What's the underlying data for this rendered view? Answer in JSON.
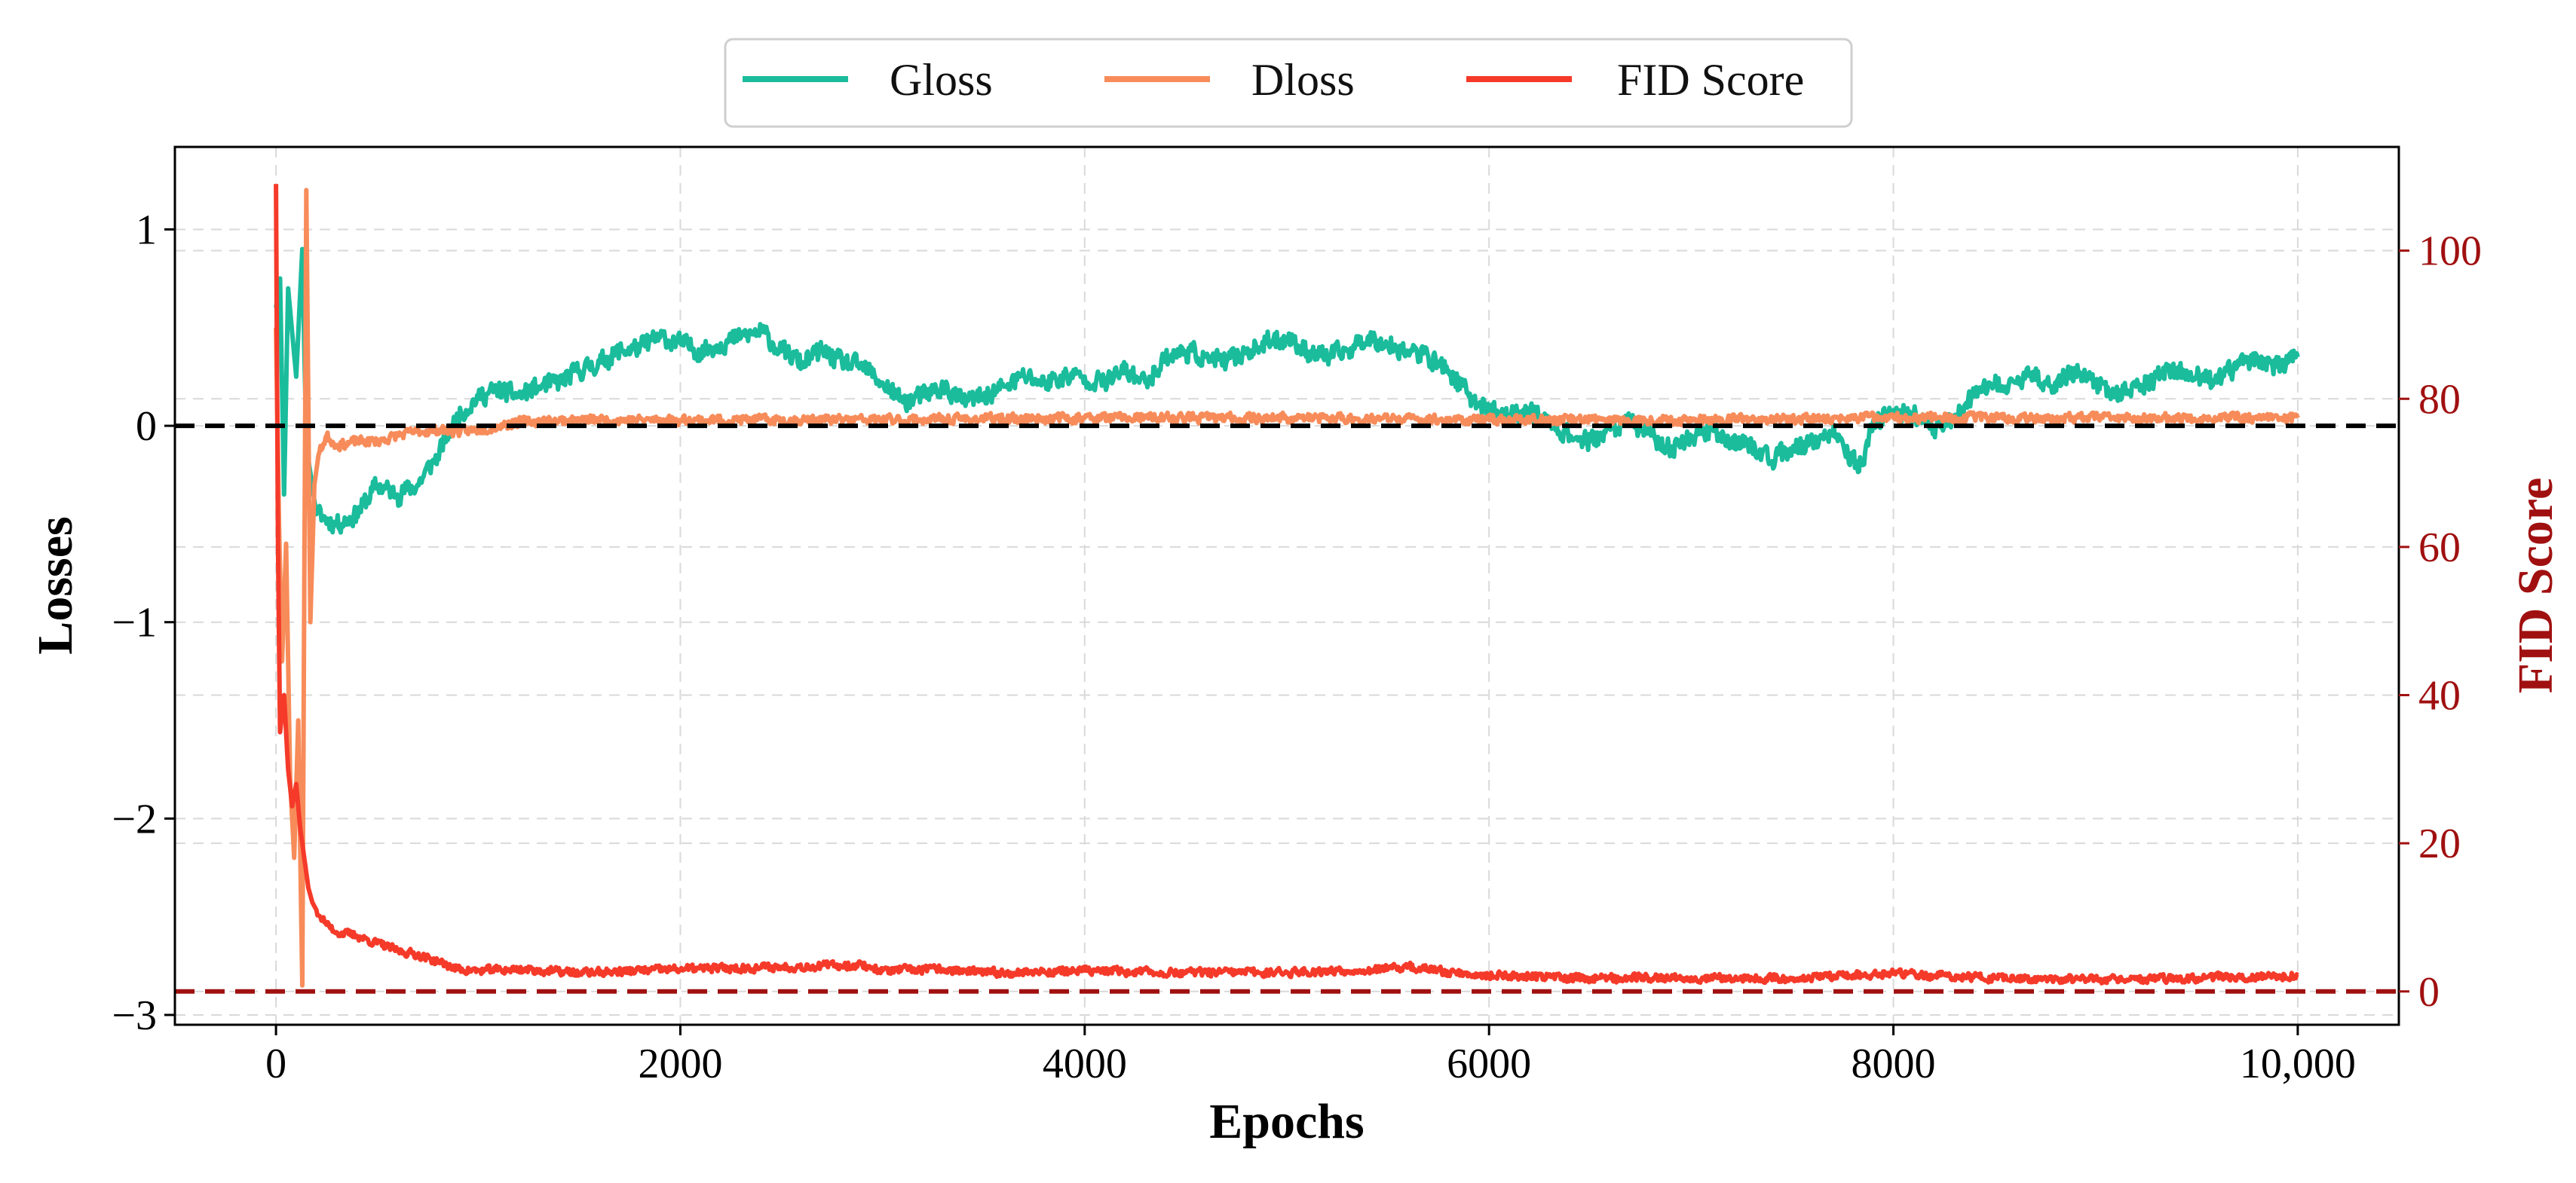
{
  "chart_data": {
    "type": "line",
    "x": {
      "label": "Epochs",
      "range": [
        -500,
        10500
      ],
      "ticks": [
        0,
        2000,
        4000,
        6000,
        8000,
        10000
      ],
      "tick_labels": [
        "0",
        "2000",
        "4000",
        "6000",
        "8000",
        "10,000"
      ]
    },
    "y_left": {
      "label": "Losses",
      "range": [
        -3.05,
        1.42
      ],
      "ticks": [
        -3,
        -2,
        -1,
        0,
        1
      ],
      "tick_labels": [
        "−3",
        "−2",
        "−1",
        "0",
        "1"
      ]
    },
    "y_right": {
      "label": "FID Score",
      "range": [
        -4.5,
        114
      ],
      "ticks": [
        0,
        20,
        40,
        60,
        80,
        100
      ],
      "tick_labels": [
        "0",
        "20",
        "40",
        "60",
        "80",
        "100"
      ],
      "color": "#a01010"
    },
    "grid": "dashed",
    "legend": {
      "placement": "top-center, outside",
      "entries": [
        "Gloss",
        "Dloss",
        "FID Score"
      ]
    },
    "reference_lines": [
      {
        "axis": "left",
        "value": 0,
        "color": "#000000",
        "style": "dashed"
      },
      {
        "axis": "right",
        "value": 0,
        "color": "#a01010",
        "style": "dashed"
      }
    ],
    "series": [
      {
        "name": "Gloss",
        "axis": "left",
        "color": "#1abc9c",
        "noise": 0.045,
        "seed": 11,
        "points": [
          [
            0,
            0.6
          ],
          [
            20,
            0.75
          ],
          [
            40,
            -0.35
          ],
          [
            60,
            0.7
          ],
          [
            100,
            0.25
          ],
          [
            130,
            0.9
          ],
          [
            150,
            -0.1
          ],
          [
            200,
            -0.45
          ],
          [
            300,
            -0.5
          ],
          [
            400,
            -0.45
          ],
          [
            500,
            -0.3
          ],
          [
            600,
            -0.35
          ],
          [
            700,
            -0.3
          ],
          [
            800,
            -0.15
          ],
          [
            900,
            0.05
          ],
          [
            1000,
            0.15
          ],
          [
            1100,
            0.18
          ],
          [
            1200,
            0.15
          ],
          [
            1300,
            0.2
          ],
          [
            1400,
            0.22
          ],
          [
            1500,
            0.28
          ],
          [
            1600,
            0.32
          ],
          [
            1700,
            0.38
          ],
          [
            1800,
            0.4
          ],
          [
            1900,
            0.45
          ],
          [
            2000,
            0.42
          ],
          [
            2100,
            0.38
          ],
          [
            2200,
            0.42
          ],
          [
            2300,
            0.45
          ],
          [
            2400,
            0.48
          ],
          [
            2500,
            0.38
          ],
          [
            2600,
            0.32
          ],
          [
            2700,
            0.38
          ],
          [
            2800,
            0.32
          ],
          [
            2900,
            0.3
          ],
          [
            3000,
            0.22
          ],
          [
            3100,
            0.12
          ],
          [
            3200,
            0.15
          ],
          [
            3300,
            0.2
          ],
          [
            3400,
            0.12
          ],
          [
            3500,
            0.15
          ],
          [
            3600,
            0.2
          ],
          [
            3700,
            0.25
          ],
          [
            3800,
            0.22
          ],
          [
            3900,
            0.25
          ],
          [
            4000,
            0.25
          ],
          [
            4100,
            0.22
          ],
          [
            4200,
            0.28
          ],
          [
            4300,
            0.22
          ],
          [
            4400,
            0.35
          ],
          [
            4500,
            0.38
          ],
          [
            4600,
            0.35
          ],
          [
            4700,
            0.32
          ],
          [
            4800,
            0.38
          ],
          [
            4900,
            0.42
          ],
          [
            5000,
            0.45
          ],
          [
            5100,
            0.38
          ],
          [
            5200,
            0.35
          ],
          [
            5300,
            0.38
          ],
          [
            5400,
            0.45
          ],
          [
            5500,
            0.42
          ],
          [
            5600,
            0.38
          ],
          [
            5700,
            0.35
          ],
          [
            5800,
            0.28
          ],
          [
            5900,
            0.15
          ],
          [
            6000,
            0.08
          ],
          [
            6100,
            0.05
          ],
          [
            6200,
            0.08
          ],
          [
            6300,
            0.02
          ],
          [
            6400,
            -0.05
          ],
          [
            6500,
            -0.08
          ],
          [
            6600,
            -0.02
          ],
          [
            6700,
            0.02
          ],
          [
            6800,
            -0.05
          ],
          [
            6900,
            -0.12
          ],
          [
            7000,
            -0.05
          ],
          [
            7100,
            -0.02
          ],
          [
            7200,
            -0.08
          ],
          [
            7300,
            -0.1
          ],
          [
            7400,
            -0.18
          ],
          [
            7500,
            -0.12
          ],
          [
            7600,
            -0.08
          ],
          [
            7700,
            -0.05
          ],
          [
            7800,
            -0.18
          ],
          [
            7850,
            -0.2
          ],
          [
            7900,
            0.02
          ],
          [
            8000,
            0.08
          ],
          [
            8100,
            0.05
          ],
          [
            8200,
            -0.02
          ],
          [
            8300,
            0.05
          ],
          [
            8400,
            0.15
          ],
          [
            8500,
            0.2
          ],
          [
            8600,
            0.22
          ],
          [
            8700,
            0.25
          ],
          [
            8800,
            0.22
          ],
          [
            8900,
            0.28
          ],
          [
            9000,
            0.22
          ],
          [
            9100,
            0.15
          ],
          [
            9200,
            0.2
          ],
          [
            9300,
            0.25
          ],
          [
            9400,
            0.28
          ],
          [
            9500,
            0.25
          ],
          [
            9600,
            0.22
          ],
          [
            9700,
            0.3
          ],
          [
            9800,
            0.35
          ],
          [
            9900,
            0.3
          ],
          [
            10000,
            0.35
          ]
        ]
      },
      {
        "name": "Dloss",
        "axis": "left",
        "color": "#f78c5a",
        "noise": 0.022,
        "seed": 23,
        "points": [
          [
            0,
            0.5
          ],
          [
            15,
            -0.5
          ],
          [
            30,
            -1.2
          ],
          [
            50,
            -0.6
          ],
          [
            70,
            -1.8
          ],
          [
            90,
            -2.2
          ],
          [
            110,
            -1.5
          ],
          [
            130,
            -2.85
          ],
          [
            150,
            1.2
          ],
          [
            170,
            -1.0
          ],
          [
            190,
            -0.3
          ],
          [
            210,
            -0.15
          ],
          [
            250,
            -0.05
          ],
          [
            300,
            -0.1
          ],
          [
            400,
            -0.08
          ],
          [
            500,
            -0.08
          ],
          [
            600,
            -0.05
          ],
          [
            700,
            -0.03
          ],
          [
            800,
            -0.02
          ],
          [
            900,
            -0.03
          ],
          [
            1000,
            -0.02
          ],
          [
            1200,
            0.02
          ],
          [
            1500,
            0.03
          ],
          [
            2000,
            0.03
          ],
          [
            3000,
            0.03
          ],
          [
            4000,
            0.04
          ],
          [
            5000,
            0.04
          ],
          [
            6000,
            0.03
          ],
          [
            7000,
            0.03
          ],
          [
            8000,
            0.04
          ],
          [
            9000,
            0.04
          ],
          [
            10000,
            0.04
          ]
        ]
      },
      {
        "name": "FID Score",
        "axis": "right",
        "color": "#f53a2a",
        "noise": 0.5,
        "seed": 37,
        "points": [
          [
            0,
            109
          ],
          [
            10,
            60
          ],
          [
            20,
            35
          ],
          [
            40,
            40
          ],
          [
            60,
            30
          ],
          [
            80,
            25
          ],
          [
            100,
            28
          ],
          [
            120,
            22
          ],
          [
            140,
            18
          ],
          [
            160,
            14
          ],
          [
            180,
            12
          ],
          [
            200,
            11
          ],
          [
            250,
            9
          ],
          [
            300,
            8
          ],
          [
            400,
            7.5
          ],
          [
            500,
            6.5
          ],
          [
            600,
            5.5
          ],
          [
            700,
            5
          ],
          [
            800,
            4
          ],
          [
            900,
            3
          ],
          [
            1000,
            2.8
          ],
          [
            1200,
            3
          ],
          [
            1500,
            2.5
          ],
          [
            2000,
            3
          ],
          [
            2500,
            3.3
          ],
          [
            2900,
            3.6
          ],
          [
            3000,
            2.8
          ],
          [
            3300,
            3
          ],
          [
            3500,
            2.5
          ],
          [
            4000,
            2.8
          ],
          [
            4500,
            2.5
          ],
          [
            5000,
            2.6
          ],
          [
            5500,
            3
          ],
          [
            5600,
            3.3
          ],
          [
            5800,
            2.6
          ],
          [
            6000,
            2.2
          ],
          [
            6500,
            1.8
          ],
          [
            7000,
            1.9
          ],
          [
            7500,
            1.8
          ],
          [
            8000,
            2.4
          ],
          [
            8200,
            2.1
          ],
          [
            8500,
            1.8
          ],
          [
            9000,
            1.6
          ],
          [
            9500,
            1.8
          ],
          [
            10000,
            2.2
          ]
        ]
      }
    ]
  }
}
